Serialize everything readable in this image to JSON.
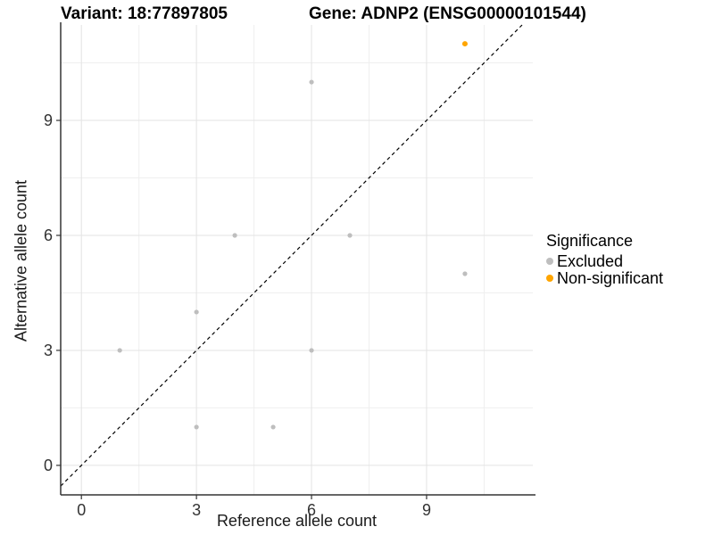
{
  "header": {
    "variant_title": "Variant: 18:77897805",
    "gene_title": "Gene: ADNP2 (ENSG00000101544)"
  },
  "chart_data": {
    "type": "scatter",
    "xlabel": "Reference allele count",
    "ylabel": "Alternative allele count",
    "x_ticks": [
      0,
      3,
      6,
      9
    ],
    "y_ticks": [
      0,
      3,
      6,
      9
    ],
    "xlim": [
      -0.54,
      11.77
    ],
    "ylim": [
      -0.77,
      11.49
    ],
    "grid": "major-and-minor",
    "identity_line": {
      "style": "dashed",
      "color": "#000000",
      "slope": 1,
      "intercept": 0
    },
    "legend": {
      "title": "Significance",
      "position": "right",
      "entries": [
        {
          "label": "Excluded",
          "color": "#BEBEBE"
        },
        {
          "label": "Non-significant",
          "color": "#FFA500"
        }
      ]
    },
    "series": [
      {
        "name": "Excluded",
        "color": "#BEBEBE",
        "point_radius": 2.6,
        "points": [
          [
            1,
            3
          ],
          [
            3,
            1
          ],
          [
            3,
            4
          ],
          [
            4,
            6
          ],
          [
            5,
            1
          ],
          [
            6,
            3
          ],
          [
            6,
            10
          ],
          [
            7,
            6
          ],
          [
            10,
            5
          ]
        ]
      },
      {
        "name": "Non-significant",
        "color": "#FFA500",
        "point_radius": 3,
        "points": [
          [
            10,
            11
          ]
        ]
      }
    ]
  },
  "colors": {
    "axis_line": "#333333",
    "tick_label": "#333333",
    "grid_major": "#e3e3e3",
    "grid_minor": "#efefef"
  }
}
